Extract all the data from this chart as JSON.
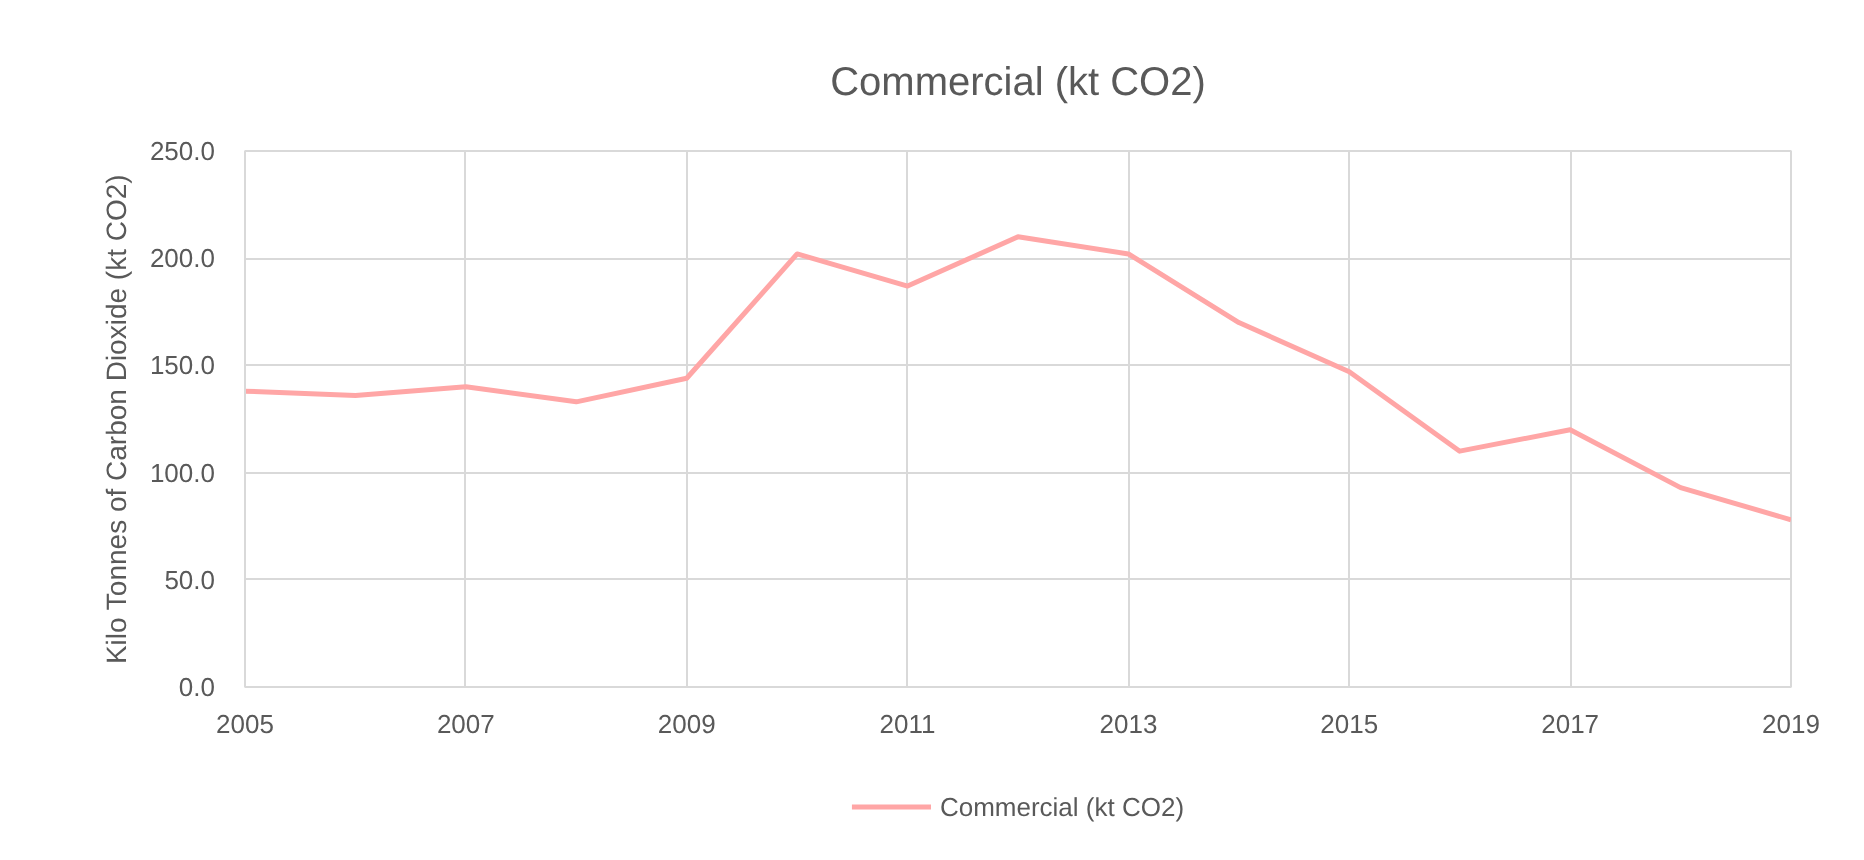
{
  "chart_data": {
    "type": "line",
    "title": "Commercial (kt CO2)",
    "ylabel": "Kilo Tonnes of Carbon Dioxide (kt CO2)",
    "x": [
      2005,
      2006,
      2007,
      2008,
      2009,
      2010,
      2011,
      2012,
      2013,
      2014,
      2015,
      2016,
      2017,
      2018,
      2019
    ],
    "series": [
      {
        "name": "Commercial (kt CO2)",
        "color": "#ffa6a6",
        "values": [
          138,
          136,
          140,
          133,
          144,
          202,
          187,
          210,
          202,
          170,
          147,
          110,
          120,
          93,
          78
        ]
      }
    ],
    "xlim": [
      2005,
      2019
    ],
    "xticks": [
      2005,
      2007,
      2009,
      2011,
      2013,
      2015,
      2017,
      2019
    ],
    "ylim": [
      0,
      250
    ],
    "yticks": [
      {
        "value": 0,
        "label": "0.0"
      },
      {
        "value": 50,
        "label": "50.0"
      },
      {
        "value": 100,
        "label": "100.0"
      },
      {
        "value": 150,
        "label": "150.0"
      },
      {
        "value": 200,
        "label": "200.0"
      },
      {
        "value": 250,
        "label": "250.0"
      }
    ],
    "grid": true,
    "legend": "bottom"
  }
}
